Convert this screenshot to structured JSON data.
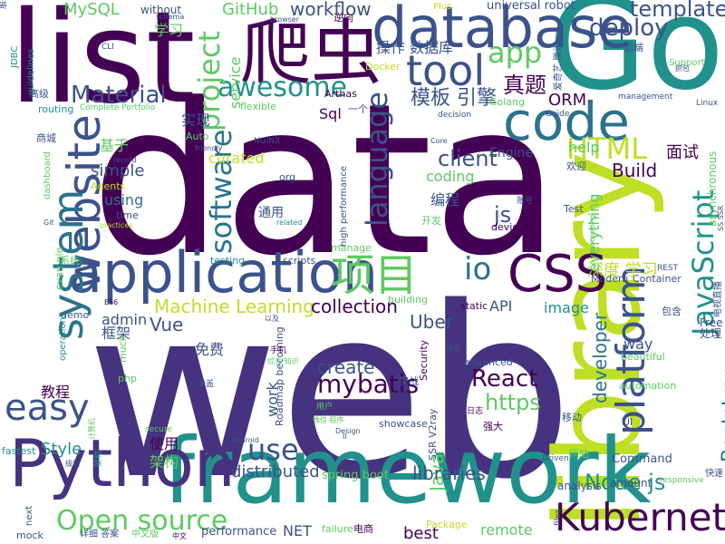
{
  "palette": {
    "c1": "#440154",
    "c2": "#3b528b",
    "c3": "#21918c",
    "c4": "#5ec962",
    "c5": "#bddf26",
    "c6": "#2c728e"
  },
  "words": [
    {
      "text": "data",
      "color": "#440154"
    },
    {
      "text": "web",
      "color": "#46327e"
    },
    {
      "text": "Go",
      "color": "#21918c"
    },
    {
      "text": "library",
      "color": "#bddf26"
    },
    {
      "text": "list",
      "color": "#440154"
    },
    {
      "text": "framework",
      "color": "#21918c"
    },
    {
      "text": "database",
      "color": "#3b528b"
    },
    {
      "text": "Python",
      "color": "#46327e"
    },
    {
      "text": "application",
      "color": "#3b528b"
    },
    {
      "text": "爬虫",
      "color": "#440154"
    },
    {
      "text": "code",
      "color": "#2c728e"
    },
    {
      "text": "website",
      "color": "#3b528b"
    },
    {
      "text": "CSS",
      "color": "#440154"
    },
    {
      "text": "tool",
      "color": "#3b528b"
    },
    {
      "text": "Kubernetes",
      "color": "#440154"
    },
    {
      "text": "platform",
      "color": "#3b528b"
    },
    {
      "text": "system",
      "color": "#2c728e"
    },
    {
      "text": "easy",
      "color": "#3b528b"
    },
    {
      "text": "项目",
      "color": "#5ec962"
    },
    {
      "text": "JavaScript",
      "color": "#21918c"
    },
    {
      "text": "HTML",
      "color": "#bddf26"
    },
    {
      "text": "awesome",
      "color": "#21918c"
    },
    {
      "text": "project",
      "color": "#5ec962"
    },
    {
      "text": "language",
      "color": "#3b528b"
    },
    {
      "text": "software",
      "color": "#2c728e"
    },
    {
      "text": "app",
      "color": "#5ec962"
    },
    {
      "text": "io",
      "color": "#2c728e"
    },
    {
      "text": "template",
      "color": "#3b528b"
    },
    {
      "text": "deploy",
      "color": "#3b528b"
    },
    {
      "text": "Open source",
      "color": "#5ec962"
    },
    {
      "text": "use",
      "color": "#3b528b"
    },
    {
      "text": "mybatis",
      "color": "#440154"
    },
    {
      "text": "React",
      "color": "#440154"
    },
    {
      "text": "Material",
      "color": "#3b528b"
    },
    {
      "text": "模板 引擎",
      "color": "#3b528b"
    },
    {
      "text": "真题",
      "color": "#440154"
    },
    {
      "text": "client",
      "color": "#3b528b"
    },
    {
      "text": "js",
      "color": "#3b528b"
    },
    {
      "text": "Node js",
      "color": "#21918c"
    },
    {
      "text": "https",
      "color": "#5ec962"
    },
    {
      "text": "Bootstrap",
      "color": "#2c728e"
    },
    {
      "text": "Machine Learning",
      "color": "#bddf26"
    },
    {
      "text": "Vue",
      "color": "#3b528b"
    },
    {
      "text": "collection",
      "color": "#440154"
    },
    {
      "text": "Uber",
      "color": "#3b528b"
    },
    {
      "text": "developer",
      "color": "#2c728e"
    },
    {
      "text": "Java",
      "color": "#5ec962"
    },
    {
      "text": "create",
      "color": "#3b528b"
    },
    {
      "text": "libraries",
      "color": "#3b528b"
    },
    {
      "text": "distributed",
      "color": "#3b528b"
    },
    {
      "text": "simple",
      "color": "#3b528b"
    },
    {
      "text": "Build",
      "color": "#440154"
    },
    {
      "text": "面试",
      "color": "#440154"
    },
    {
      "text": "深度 学习",
      "color": "#bddf26"
    },
    {
      "text": "MySQL",
      "color": "#5ec962"
    },
    {
      "text": "GitHub",
      "color": "#5ec962"
    },
    {
      "text": "workflow",
      "color": "#3b528b"
    },
    {
      "text": "without",
      "color": "#3b528b"
    },
    {
      "text": "universal robot",
      "color": "#3b528b"
    },
    {
      "text": "学习",
      "color": "#5ec962"
    },
    {
      "text": "service",
      "color": "#5ec962"
    },
    {
      "text": "操作",
      "color": "#3b528b"
    },
    {
      "text": "数据库",
      "color": "#3b528b"
    },
    {
      "text": "Sql",
      "color": "#440154"
    },
    {
      "text": "实现",
      "color": "#3b528b"
    },
    {
      "text": "基于",
      "color": "#5ec962"
    },
    {
      "text": "curated",
      "color": "#bddf26"
    },
    {
      "text": "using",
      "color": "#2c728e"
    },
    {
      "text": "coding",
      "color": "#5ec962"
    },
    {
      "text": "编程",
      "color": "#3b528b"
    },
    {
      "text": "通用",
      "color": "#3b528b"
    },
    {
      "text": "ORM",
      "color": "#440154"
    },
    {
      "text": "Engine",
      "color": "#3b528b"
    },
    {
      "text": "help",
      "color": "#5ec962"
    },
    {
      "text": "everything",
      "color": "#5ec962"
    },
    {
      "text": "API",
      "color": "#3b528b"
    },
    {
      "text": "image",
      "color": "#21918c"
    },
    {
      "text": "admin",
      "color": "#3b528b"
    },
    {
      "text": "框架",
      "color": "#3b528b"
    },
    {
      "text": "免费",
      "color": "#3b528b"
    },
    {
      "text": "教程",
      "color": "#440154"
    },
    {
      "text": "work",
      "color": "#3b528b"
    },
    {
      "text": "Style",
      "color": "#21918c"
    },
    {
      "text": "使用",
      "color": "#440154"
    },
    {
      "text": "架构",
      "color": "#5ec962"
    },
    {
      "text": "spring boot",
      "color": "#5ec962"
    },
    {
      "text": "remote",
      "color": "#5ec962"
    },
    {
      "text": "best",
      "color": "#440154"
    },
    {
      "text": "NET",
      "color": "#3b528b"
    },
    {
      "text": "performance",
      "color": "#3b528b"
    },
    {
      "text": "way",
      "color": "#3b528b"
    },
    {
      "text": "Free",
      "color": "#3b528b"
    },
    {
      "text": "处理",
      "color": "#3b528b"
    },
    {
      "text": "Command",
      "color": "#3b528b"
    },
    {
      "text": "amount",
      "color": "#3b528b"
    },
    {
      "text": "analysis",
      "color": "#3b528b"
    },
    {
      "text": "Docker",
      "color": "#bddf26"
    },
    {
      "text": "Arthas",
      "color": "#440154"
    },
    {
      "text": "flexible",
      "color": "#5ec962"
    },
    {
      "text": "Golang",
      "color": "#5ec962"
    },
    {
      "text": "Auto",
      "color": "#5ec962"
    },
    {
      "text": "Agents",
      "color": "#bddf26"
    },
    {
      "text": "高级",
      "color": "#3b528b"
    },
    {
      "text": "routing",
      "color": "#21918c"
    },
    {
      "text": "商城",
      "color": "#3b528b"
    },
    {
      "text": "time",
      "color": "#3b528b"
    },
    {
      "text": "org",
      "color": "#3b528b"
    },
    {
      "text": "NGINX",
      "color": "#3b528b"
    },
    {
      "text": "欢迎",
      "color": "#3b528b"
    },
    {
      "text": "Test",
      "color": "#3b528b"
    },
    {
      "text": "device",
      "color": "#440154"
    },
    {
      "text": "开发",
      "color": "#5ec962"
    },
    {
      "text": "系统",
      "color": "#5ec962"
    },
    {
      "text": "testing",
      "color": "#21918c"
    },
    {
      "text": "scripts",
      "color": "#3b528b"
    },
    {
      "text": "example",
      "color": "#5ec962"
    },
    {
      "text": "demo",
      "color": "#3b528b"
    },
    {
      "text": "Modern",
      "color": "#3b528b"
    },
    {
      "text": "Container",
      "color": "#3b528b"
    },
    {
      "text": "static",
      "color": "#440154"
    },
    {
      "text": "building",
      "color": "#5ec962"
    },
    {
      "text": "php",
      "color": "#5ec962"
    },
    {
      "text": "advanced",
      "color": "#3b528b"
    },
    {
      "text": "Security",
      "color": "#440154"
    },
    {
      "text": "Roadmap becoming",
      "color": "#3b528b"
    },
    {
      "text": "showcase",
      "color": "#3b528b"
    },
    {
      "text": "SSR V2ray",
      "color": "#3b528b"
    },
    {
      "text": "强大",
      "color": "#440154"
    },
    {
      "text": "实战",
      "color": "#3b528b"
    },
    {
      "text": "beautiful",
      "color": "#5ec962"
    },
    {
      "text": "automation",
      "color": "#5ec962"
    },
    {
      "text": "UI",
      "color": "#3b528b"
    },
    {
      "text": "移动",
      "color": "#3b528b"
    },
    {
      "text": "fastest",
      "color": "#21918c"
    },
    {
      "text": "mock",
      "color": "#3b528b"
    },
    {
      "text": "next",
      "color": "#3b528b"
    },
    {
      "text": "详细 答案",
      "color": "#3b528b"
    },
    {
      "text": "中文版",
      "color": "#5ec962"
    },
    {
      "text": "failure",
      "color": "#5ec962"
    },
    {
      "text": "电商",
      "color": "#440154"
    },
    {
      "text": "Package",
      "color": "#bddf26"
    },
    {
      "text": "files",
      "color": "#3b528b"
    },
    {
      "text": "网站",
      "color": "#5ec962"
    },
    {
      "text": "Driven",
      "color": "#3b528b"
    },
    {
      "text": "快速",
      "color": "#3b528b"
    },
    {
      "text": "responsive",
      "color": "#5ec962"
    },
    {
      "text": "包含",
      "color": "#3b528b"
    },
    {
      "text": "REST",
      "color": "#3b528b"
    },
    {
      "text": "Linux",
      "color": "#3b528b"
    },
    {
      "text": "management",
      "color": "#3b528b"
    },
    {
      "text": "Support",
      "color": "#5ec962"
    },
    {
      "text": "asynchronous",
      "color": "#5ec962"
    },
    {
      "text": "前端",
      "color": "#3b528b"
    },
    {
      "text": "Guide",
      "color": "#3b528b"
    },
    {
      "text": "decision",
      "color": "#3b528b"
    },
    {
      "text": "一个",
      "color": "#3b528b"
    },
    {
      "text": "Plus",
      "color": "#bddf26"
    },
    {
      "text": "逆向",
      "color": "#440154"
    },
    {
      "text": "schema",
      "color": "#3b528b"
    },
    {
      "text": "browser",
      "color": "#3b528b"
    },
    {
      "text": "CLI",
      "color": "#3b528b"
    },
    {
      "text": "JDBC",
      "color": "#21918c"
    },
    {
      "text": "guidelines",
      "color": "#21918c"
    },
    {
      "text": "服务",
      "color": "#3b528b"
    },
    {
      "text": "Complete Portfolio",
      "color": "#5ec962"
    },
    {
      "text": "record",
      "color": "#3b528b"
    },
    {
      "text": "friendly",
      "color": "#3b528b"
    },
    {
      "text": "dashboard",
      "color": "#5ec962"
    },
    {
      "text": "Git",
      "color": "#3b528b"
    },
    {
      "text": "practices",
      "color": "#bddf26"
    },
    {
      "text": "related",
      "color": "#21918c"
    },
    {
      "text": "manage",
      "color": "#5ec962"
    },
    {
      "text": "high performance",
      "color": "#3b528b"
    },
    {
      "text": "Core",
      "color": "#3b528b"
    },
    {
      "text": "账号",
      "color": "#3b528b"
    },
    {
      "text": "ES6",
      "color": "#440154"
    },
    {
      "text": "much",
      "color": "#5ec962"
    },
    {
      "text": "operations",
      "color": "#21918c"
    },
    {
      "text": "以及",
      "color": "#3b528b"
    },
    {
      "text": "手机",
      "color": "#440154"
    },
    {
      "text": "涵盖",
      "color": "#3b528b"
    },
    {
      "text": "语音",
      "color": "#3b528b"
    },
    {
      "text": "日志",
      "color": "#440154"
    },
    {
      "text": "用户",
      "color": "#5ec962"
    },
    {
      "text": "计算机",
      "color": "#5ec962"
    },
    {
      "text": "secure",
      "color": "#5ec962"
    },
    {
      "text": "Android",
      "color": "#3b528b"
    },
    {
      "text": "微信 程序",
      "color": "#5ec962"
    },
    {
      "text": "Design",
      "color": "#3b528b"
    },
    {
      "text": "II",
      "color": "#3b528b"
    },
    {
      "text": "级别",
      "color": "#3b528b"
    },
    {
      "text": "中文",
      "color": "#440154"
    },
    {
      "text": "processing",
      "color": "#5ec962"
    },
    {
      "text": "电视直播",
      "color": "#3b528b"
    },
    {
      "text": "SS SSR",
      "color": "#3b528b"
    },
    {
      "text": "抓包",
      "color": "#3b528b"
    },
    {
      "text": "爱奇艺 腾讯",
      "color": "#3b528b"
    },
    {
      "text": "综合 知识",
      "color": "#5ec962"
    },
    {
      "text": "架构",
      "color": "#21918c"
    }
  ]
}
